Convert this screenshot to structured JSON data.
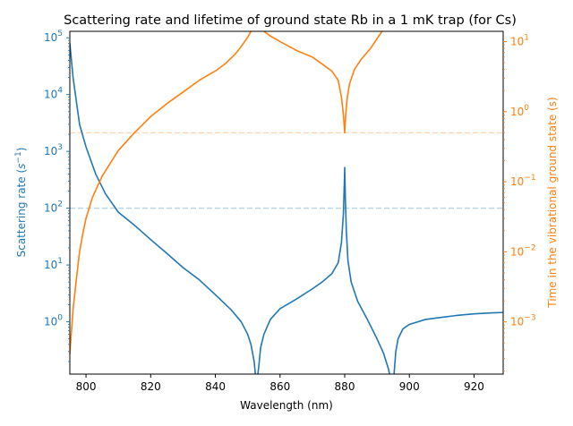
{
  "chart_data": {
    "type": "line",
    "title": "Scattering rate and lifetime of ground state Rb in a 1 mK trap (for Cs)",
    "xlabel": "Wavelength (nm)",
    "ylabel_left_base": "Scattering rate (",
    "ylabel_left_unit": "s",
    "ylabel_left_exp": "−1",
    "ylabel_left_close": ")",
    "ylabel_right": "Time in the vibrational ground state (s)",
    "xlim": [
      795,
      929
    ],
    "x_ticks": [
      "800",
      "820",
      "840",
      "860",
      "880",
      "900",
      "920"
    ],
    "x_tick_values": [
      800,
      820,
      840,
      860,
      880,
      900,
      920
    ],
    "y_left": {
      "scale": "log",
      "lim": [
        0.12,
        130000
      ],
      "ticks": [
        {
          "value": 1,
          "base": "10",
          "exp": "0"
        },
        {
          "value": 10,
          "base": "10",
          "exp": "1"
        },
        {
          "value": 100,
          "base": "10",
          "exp": "2"
        },
        {
          "value": 1000,
          "base": "10",
          "exp": "3"
        },
        {
          "value": 10000,
          "base": "10",
          "exp": "4"
        },
        {
          "value": 100000,
          "base": "10",
          "exp": "5"
        }
      ],
      "color": "#1f77b4"
    },
    "y_right": {
      "scale": "log",
      "lim": [
        0.00018,
        14
      ],
      "ticks": [
        {
          "value": 0.001,
          "base": "10",
          "exp": "−3"
        },
        {
          "value": 0.01,
          "base": "10",
          "exp": "−2"
        },
        {
          "value": 0.1,
          "base": "10",
          "exp": "−1"
        },
        {
          "value": 1,
          "base": "10",
          "exp": "0"
        },
        {
          "value": 10,
          "base": "10",
          "exp": "1"
        }
      ],
      "color": "#ff7f0e"
    },
    "series": [
      {
        "axis": "left",
        "color": "#1f77b4",
        "x": [
          795,
          796,
          798,
          800,
          803,
          806,
          810,
          815,
          820,
          825,
          830,
          835,
          840,
          845,
          848,
          850,
          851,
          852,
          852.5,
          853,
          853.5,
          854,
          855,
          857,
          860,
          865,
          870,
          873,
          876,
          878,
          879,
          879.6,
          879.9,
          880,
          880.2,
          880.5,
          881,
          882,
          884,
          887,
          890,
          892,
          893.5,
          894.5,
          895,
          895.3,
          895.8,
          896.5,
          898,
          900,
          905,
          910,
          915,
          920,
          925,
          929
        ],
        "y": [
          80000,
          20000,
          3000,
          1200,
          400,
          180,
          85,
          50,
          28,
          16,
          9,
          5.5,
          3,
          1.6,
          1,
          0.6,
          0.4,
          0.2,
          0.1,
          0.1,
          0.18,
          0.35,
          0.6,
          1.1,
          1.7,
          2.5,
          3.8,
          5,
          7,
          11,
          25,
          80,
          300,
          520,
          150,
          40,
          12,
          5,
          2.3,
          1.1,
          0.5,
          0.28,
          0.15,
          0.08,
          0.08,
          0.13,
          0.3,
          0.5,
          0.75,
          0.9,
          1.1,
          1.2,
          1.3,
          1.38,
          1.43,
          1.46
        ]
      },
      {
        "axis": "right",
        "color": "#ff7f0e",
        "x": [
          795,
          796,
          797,
          798,
          799,
          800,
          802,
          805,
          810,
          815,
          820,
          825,
          830,
          835,
          840,
          843,
          846,
          848,
          850,
          851,
          852,
          853,
          854,
          855,
          857,
          860,
          865,
          870,
          873,
          876,
          878,
          879,
          879.6,
          880,
          880.3,
          880.8,
          881.5,
          883,
          885,
          888,
          890,
          892
        ],
        "y": [
          0.00035,
          0.0015,
          0.004,
          0.01,
          0.018,
          0.03,
          0.06,
          0.12,
          0.28,
          0.5,
          0.85,
          1.3,
          1.9,
          2.8,
          3.8,
          4.8,
          6.5,
          8.5,
          11.5,
          14,
          16,
          16,
          15,
          14,
          12,
          10,
          7.5,
          6,
          4.8,
          3.8,
          2.8,
          1.6,
          0.9,
          0.5,
          0.9,
          1.6,
          2.5,
          4,
          5.5,
          8,
          11,
          15
        ]
      }
    ],
    "reference_lines": [
      {
        "axis": "left",
        "value": 100,
        "color": "#1f77b4",
        "style": "dashed",
        "alpha": 0.3
      },
      {
        "axis": "right",
        "value": 0.5,
        "color": "#ff7f0e",
        "style": "dashed",
        "alpha": 0.3
      }
    ],
    "grid": false
  }
}
